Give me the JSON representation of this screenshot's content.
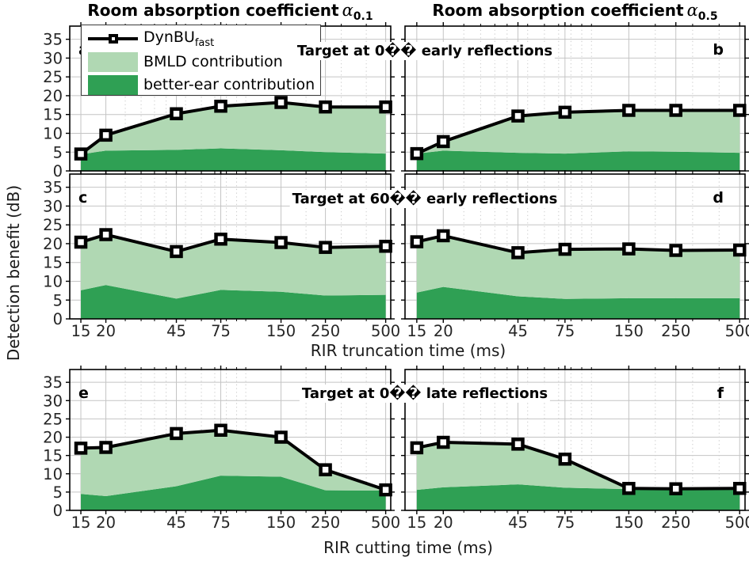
{
  "figure": {
    "column_titles": [
      {
        "text": "Room absorption coefficient",
        "alpha": "α",
        "subscript": "0.1"
      },
      {
        "text": "Room absorption coefficient",
        "alpha": "α",
        "subscript": "0.5"
      }
    ],
    "ylabel": "Detection benefit (dB)",
    "xlabel_upper": "RIR truncation time (ms)",
    "xlabel_lower": "RIR cutting time (ms)"
  },
  "legend": {
    "items": [
      {
        "label": "DynBU",
        "subscript": "fast",
        "swatch": "line-marker",
        "color": "#000000"
      },
      {
        "label": "BMLD contribution",
        "swatch": "patch",
        "color": "#b0d8b3"
      },
      {
        "label": "better-ear contribution",
        "swatch": "patch",
        "color": "#2fa054"
      }
    ]
  },
  "colors": {
    "line": "#000000",
    "bmld_fill": "#b0d8b3",
    "better_ear_fill": "#2fa054",
    "grid_major": "#c4c4c4",
    "grid_minor": "#cacaca",
    "axis": "#000000",
    "tick_label": "#262626"
  },
  "chart_data": {
    "type": "area",
    "x_scale": "log",
    "x": [
      15,
      20,
      45,
      75,
      150,
      250,
      500
    ],
    "xticklabels": [
      "15",
      "20",
      "45",
      "75",
      "150",
      "250",
      "500"
    ],
    "yticks": [
      0,
      5,
      10,
      15,
      20,
      25,
      30,
      35
    ],
    "ylim": [
      0,
      38.5
    ],
    "xlim": [
      13.2,
      530
    ],
    "minor_gridlines_x": [
      25,
      30,
      35,
      40,
      50,
      60,
      70,
      80,
      90,
      100,
      200,
      300,
      400
    ],
    "grid": "on",
    "legend_position": "top-left of panel a",
    "row_titles": [
      "Target at 0�� early reflections",
      "Target at 60�� early reflections",
      "Target at 0�� late reflections"
    ],
    "panels": [
      {
        "letter": "a",
        "row": 0,
        "col": 0,
        "dynbu_fast": [
          4.5,
          9.5,
          15.2,
          17.2,
          18.2,
          17.0,
          17.0
        ],
        "better_ear": [
          4.4,
          5.4,
          5.6,
          6.0,
          5.5,
          5.0,
          4.6
        ],
        "bmld": [
          0.1,
          4.1,
          9.6,
          11.2,
          12.7,
          12.0,
          12.4
        ]
      },
      {
        "letter": "b",
        "row": 0,
        "col": 1,
        "dynbu_fast": [
          4.6,
          7.8,
          14.6,
          15.6,
          16.1,
          16.1,
          16.1
        ],
        "better_ear": [
          4.6,
          5.4,
          4.8,
          4.6,
          5.2,
          5.1,
          4.8
        ],
        "bmld": [
          0.0,
          2.4,
          9.8,
          11.0,
          10.9,
          11.0,
          11.3
        ]
      },
      {
        "letter": "c",
        "row": 1,
        "col": 0,
        "dynbu_fast": [
          20.4,
          22.4,
          17.9,
          21.2,
          20.3,
          19.0,
          19.3
        ],
        "better_ear": [
          7.6,
          9.0,
          5.4,
          7.7,
          7.2,
          6.2,
          6.4
        ],
        "bmld": [
          12.8,
          13.4,
          12.5,
          13.5,
          13.1,
          12.8,
          12.9
        ]
      },
      {
        "letter": "d",
        "row": 1,
        "col": 1,
        "dynbu_fast": [
          20.5,
          22.1,
          17.6,
          18.5,
          18.6,
          18.2,
          18.3
        ],
        "better_ear": [
          7.0,
          8.5,
          6.0,
          5.3,
          5.5,
          5.5,
          5.5
        ],
        "bmld": [
          13.5,
          13.6,
          11.6,
          13.2,
          13.1,
          12.7,
          12.8
        ]
      },
      {
        "letter": "e",
        "row": 2,
        "col": 0,
        "dynbu_fast": [
          17.0,
          17.2,
          21.0,
          21.9,
          20.0,
          11.1,
          5.6
        ],
        "better_ear": [
          4.5,
          3.9,
          6.6,
          9.5,
          9.2,
          5.5,
          5.4
        ],
        "bmld": [
          12.5,
          13.3,
          14.4,
          12.4,
          10.8,
          5.6,
          0.2
        ]
      },
      {
        "letter": "f",
        "row": 2,
        "col": 1,
        "dynbu_fast": [
          17.1,
          18.6,
          18.1,
          14.0,
          6.0,
          5.9,
          6.0
        ],
        "better_ear": [
          5.6,
          6.3,
          7.1,
          6.2,
          5.8,
          5.8,
          5.8
        ],
        "bmld": [
          11.5,
          12.3,
          11.0,
          7.8,
          0.2,
          0.1,
          0.2
        ]
      }
    ]
  }
}
